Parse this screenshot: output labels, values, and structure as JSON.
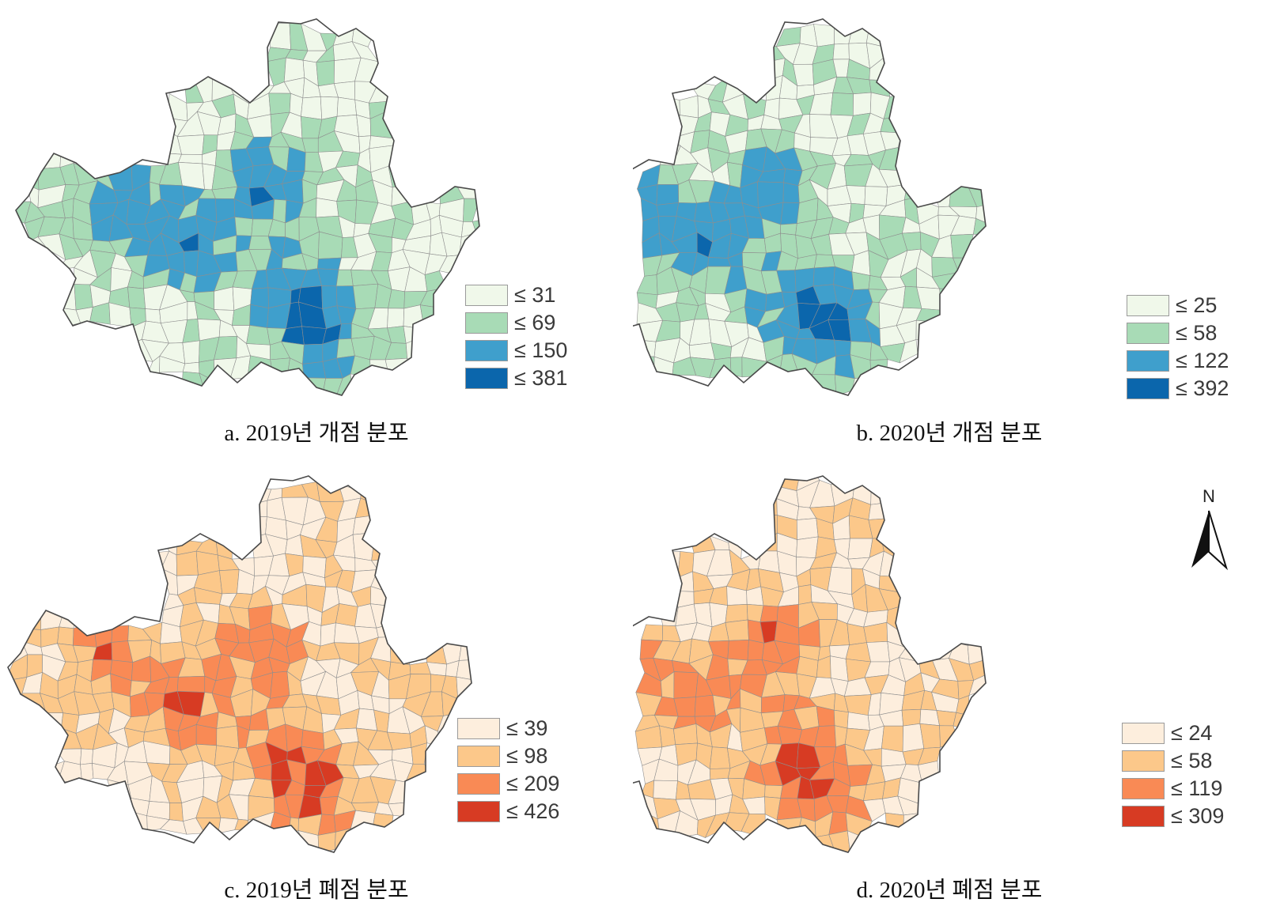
{
  "panels": [
    {
      "id": "a",
      "caption": "a. 2019년 개점 분포",
      "palette": [
        "#f0f8ea",
        "#a8dbb6",
        "#3f9fcc",
        "#0b66ac"
      ],
      "legend": [
        {
          "label": "≤ 31",
          "color": "#f0f8ea"
        },
        {
          "label": "≤ 69",
          "color": "#a8dbb6"
        },
        {
          "label": "≤ 150",
          "color": "#3f9fcc"
        },
        {
          "label": "≤ 381",
          "color": "#0b66ac"
        }
      ]
    },
    {
      "id": "b",
      "caption": "b. 2020년 개점 분포",
      "palette": [
        "#f0f8ea",
        "#a8dbb6",
        "#3f9fcc",
        "#0b66ac"
      ],
      "legend": [
        {
          "label": "≤ 25",
          "color": "#f0f8ea"
        },
        {
          "label": "≤ 58",
          "color": "#a8dbb6"
        },
        {
          "label": "≤ 122",
          "color": "#3f9fcc"
        },
        {
          "label": "≤ 392",
          "color": "#0b66ac"
        }
      ]
    },
    {
      "id": "c",
      "caption": "c. 2019년 폐점 분포",
      "palette": [
        "#fdeedd",
        "#fcc88a",
        "#f98a55",
        "#d73b23"
      ],
      "legend": [
        {
          "label": "≤ 39",
          "color": "#fdeedd"
        },
        {
          "label": "≤ 98",
          "color": "#fcc88a"
        },
        {
          "label": "≤ 209",
          "color": "#f98a55"
        },
        {
          "label": "≤ 426",
          "color": "#d73b23"
        }
      ]
    },
    {
      "id": "d",
      "caption": "d. 2020년 폐점 분포",
      "palette": [
        "#fdeedd",
        "#fcc88a",
        "#f98a55",
        "#d73b23"
      ],
      "legend": [
        {
          "label": "≤ 24",
          "color": "#fdeedd"
        },
        {
          "label": "≤ 58",
          "color": "#fcc88a"
        },
        {
          "label": "≤ 119",
          "color": "#f98a55"
        },
        {
          "label": "≤ 309",
          "color": "#d73b23"
        }
      ]
    }
  ],
  "north_arrow": {
    "label": "N",
    "icon": "north-arrow-icon"
  }
}
